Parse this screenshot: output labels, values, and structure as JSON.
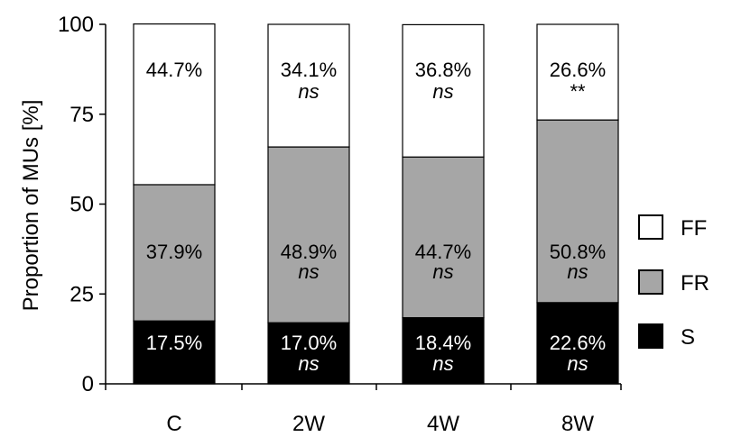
{
  "chart_data": {
    "type": "bar",
    "stacked": true,
    "categories": [
      "C",
      "2W",
      "4W",
      "8W"
    ],
    "series": [
      {
        "name": "S",
        "values": [
          17.5,
          17.0,
          18.4,
          22.6
        ],
        "labels": [
          "17.5%",
          "17.0%",
          "18.4%",
          "22.6%"
        ],
        "sig": [
          "",
          "ns",
          "ns",
          "ns"
        ],
        "color": "#000000",
        "text_color": "#ffffff"
      },
      {
        "name": "FR",
        "values": [
          37.9,
          48.9,
          44.7,
          50.8
        ],
        "labels": [
          "37.9%",
          "48.9%",
          "44.7%",
          "50.8%"
        ],
        "sig": [
          "",
          "ns",
          "ns",
          "ns"
        ],
        "color": "#a6a6a6",
        "text_color": "#000000"
      },
      {
        "name": "FF",
        "values": [
          44.7,
          34.1,
          36.8,
          26.6
        ],
        "labels": [
          "44.7%",
          "34.1%",
          "36.8%",
          "26.6%"
        ],
        "sig": [
          "",
          "ns",
          "ns",
          "**"
        ],
        "color": "#ffffff",
        "text_color": "#000000"
      }
    ],
    "ylabel": "Proportion of MUs [%]",
    "xlabel": "",
    "ylim": [
      0,
      100
    ],
    "yticks": [
      0,
      25,
      50,
      75,
      100
    ],
    "grid": false,
    "legend_position": "right",
    "legend_order": [
      "FF",
      "FR",
      "S"
    ]
  }
}
